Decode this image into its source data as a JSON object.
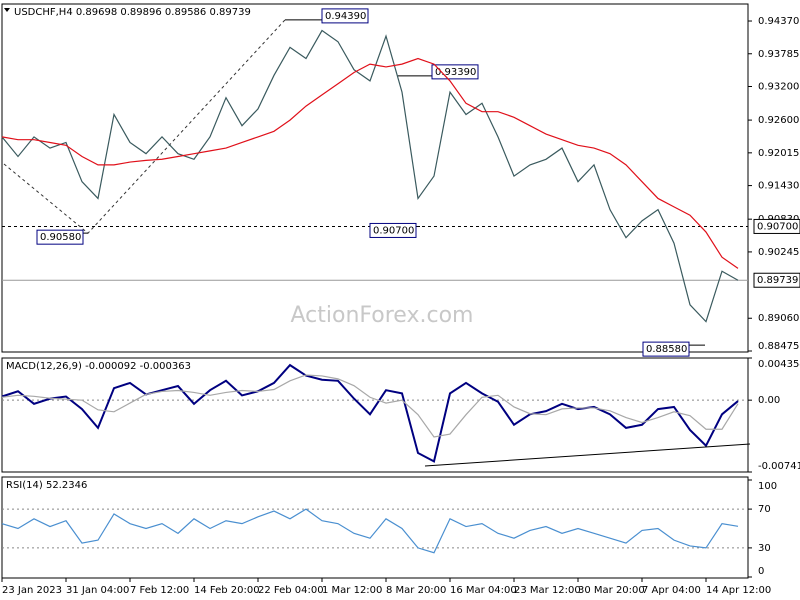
{
  "chart_data": [
    {
      "type": "line",
      "title": "USDCHF,H4 0.89698 0.89896 0.89586 0.89739",
      "watermark": "ActionForex.com",
      "ylim": [
        0.88457,
        0.94674
      ],
      "yticks": [
        {
          "value": 0.9437,
          "label": "0.94370"
        },
        {
          "value": 0.93785,
          "label": "0.93785"
        },
        {
          "value": 0.932,
          "label": "0.93200"
        },
        {
          "value": 0.926,
          "label": "0.92600"
        },
        {
          "value": 0.92015,
          "label": "0.92015"
        },
        {
          "value": 0.9143,
          "label": "0.91430"
        },
        {
          "value": 0.9083,
          "label": "0.90830"
        },
        {
          "value": 0.90245,
          "label": "0.90245"
        },
        {
          "value": 0.8906,
          "label": "0.89060"
        },
        {
          "value": 0.88475,
          "label": "0.88475"
        }
      ],
      "series": [
        {
          "name": "USDCHF",
          "color": "#3a5a5e",
          "values": [
            0.923,
            0.9195,
            0.923,
            0.921,
            0.922,
            0.915,
            0.912,
            0.927,
            0.922,
            0.92,
            0.923,
            0.92,
            0.919,
            0.923,
            0.93,
            0.925,
            0.928,
            0.934,
            0.939,
            0.937,
            0.942,
            0.94,
            0.935,
            0.933,
            0.941,
            0.931,
            0.912,
            0.916,
            0.931,
            0.927,
            0.929,
            0.923,
            0.916,
            0.918,
            0.919,
            0.921,
            0.915,
            0.918,
            0.91,
            0.905,
            0.908,
            0.91,
            0.904,
            0.893,
            0.89,
            0.899,
            0.89739
          ]
        },
        {
          "name": "MA",
          "color": "#e0101a",
          "values": [
            0.923,
            0.9225,
            0.9225,
            0.922,
            0.9215,
            0.9195,
            0.918,
            0.918,
            0.9185,
            0.9188,
            0.919,
            0.9195,
            0.92,
            0.9205,
            0.921,
            0.922,
            0.923,
            0.924,
            0.926,
            0.9285,
            0.9305,
            0.9325,
            0.9345,
            0.936,
            0.9355,
            0.936,
            0.937,
            0.936,
            0.933,
            0.929,
            0.9275,
            0.9275,
            0.9265,
            0.925,
            0.9235,
            0.9225,
            0.9215,
            0.921,
            0.92,
            0.918,
            0.915,
            0.912,
            0.9105,
            0.909,
            0.906,
            0.9015,
            0.8995
          ]
        }
      ],
      "annotations": [
        {
          "value": 0.9439,
          "label": "0.94390"
        },
        {
          "value": 0.9339,
          "label": "0.93390"
        },
        {
          "value": 0.9058,
          "label": "0.90580"
        },
        {
          "value": 0.907,
          "label": "0.90700"
        },
        {
          "value": 0.8858,
          "label": "0.88580"
        }
      ],
      "levels": [
        {
          "value": 0.907,
          "label": "0.90700",
          "style": "dashed"
        },
        {
          "value": 0.89739,
          "label": "0.89739",
          "style": "solid"
        }
      ]
    },
    {
      "type": "line",
      "title": "MACD(12,26,9) -0.000092 -0.000363",
      "grid": "dotted",
      "ylim": [
        -0.007417,
        0.004354
      ],
      "yticks": [
        0.004354,
        {
          "value": 0,
          "label": "0.00"
        },
        -0.007417
      ],
      "series": [
        {
          "name": "MACD",
          "color": "#000080",
          "values": [
            0.00038,
            0.00092,
            -0.00038,
            0.00016,
            0.00038,
            -0.00092,
            -0.00286,
            0.00124,
            0.00178,
            0.00059,
            0.00103,
            0.00146,
            -0.00038,
            0.00103,
            0.002,
            0.00049,
            0.00092,
            0.00178,
            0.00362,
            0.00254,
            0.00211,
            0.002,
            0.00016,
            -0.00146,
            0.00103,
            0.0007,
            -0.00545,
            -0.00632,
            0.0007,
            0.00178,
            0.0007,
            -0.00016,
            -0.00254,
            -0.00146,
            -0.00113,
            -0.00038,
            -0.00092,
            -0.0007,
            -0.00146,
            -0.00286,
            -0.00254,
            -0.00092,
            -0.0007,
            -0.00308,
            -0.0047,
            -0.00146,
            -9.2e-05
          ]
        },
        {
          "name": "Signal",
          "color": "#a8a8a8",
          "values": [
            0.0003,
            0.0005,
            0.0004,
            0.0002,
            0.0001,
            0,
            -0.001,
            -0.0012,
            -0.0003,
            0.0006,
            0.0009,
            0.001,
            0.0008,
            0.0005,
            0.0008,
            0.001,
            0.0009,
            0.0011,
            0.002,
            0.0026,
            0.0025,
            0.0022,
            0.0015,
            0.0003,
            -0.0003,
            0,
            -0.0015,
            -0.0038,
            -0.0035,
            -0.0015,
            0.0003,
            0.0005,
            -0.0007,
            -0.0014,
            -0.0015,
            -0.0009,
            -0.0008,
            -0.0008,
            -0.0011,
            -0.0018,
            -0.0023,
            -0.0018,
            -0.0012,
            -0.0016,
            -0.003,
            -0.003,
            -0.000363
          ]
        }
      ]
    },
    {
      "type": "line",
      "title": "RSI(14) 52.2346",
      "grid": "dotted",
      "ylim": [
        0,
        100
      ],
      "yticks": [
        100,
        70,
        30,
        0
      ],
      "categories": [
        "23 Jan 2023",
        null,
        null,
        null,
        "31 Jan 04:00",
        null,
        null,
        null,
        "7 Feb 12:00",
        null,
        null,
        null,
        "14 Feb 20:00",
        null,
        null,
        null,
        "22 Feb 04:00",
        null,
        null,
        null,
        "1 Mar 12:00",
        null,
        null,
        null,
        "8 Mar 20:00",
        null,
        null,
        null,
        "16 Mar 04:00",
        null,
        null,
        null,
        "23 Mar 12:00",
        null,
        null,
        null,
        "30 Mar 20:00",
        null,
        null,
        null,
        "7 Apr 04:00",
        null,
        null,
        null,
        "14 Apr 12:00",
        null,
        null
      ],
      "series": [
        {
          "name": "RSI",
          "color": "#4a8fd0",
          "values": [
            55,
            50,
            60,
            52,
            58,
            35,
            38,
            65,
            55,
            50,
            55,
            45,
            60,
            50,
            58,
            55,
            62,
            68,
            60,
            70,
            58,
            55,
            45,
            40,
            60,
            50,
            30,
            25,
            60,
            52,
            55,
            45,
            40,
            48,
            52,
            45,
            50,
            45,
            40,
            35,
            48,
            50,
            38,
            32,
            30,
            55,
            52.2346
          ]
        }
      ]
    }
  ]
}
